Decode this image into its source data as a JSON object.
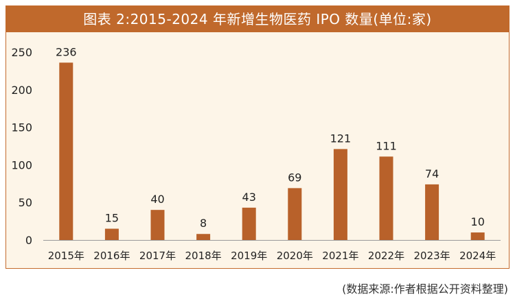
{
  "chart_data": {
    "type": "bar",
    "title": "图表 2:2015-2024 年新增生物医药 IPO 数量(单位:家)",
    "xlabel": "",
    "ylabel": "",
    "categories": [
      "2015年",
      "2016年",
      "2017年",
      "2018年",
      "2019年",
      "2020年",
      "2021年",
      "2022年",
      "2023年",
      "2024年"
    ],
    "values": [
      236,
      15,
      40,
      8,
      43,
      69,
      121,
      111,
      74,
      10
    ],
    "ylim": [
      0,
      250
    ],
    "yticks": [
      0,
      50,
      100,
      150,
      200,
      250
    ],
    "grid": false,
    "legend": "none",
    "data_labels": true
  },
  "source_note": "(数据来源:作者根据公开资料整理)",
  "colors": {
    "bar": "#b8612a",
    "title_bg": "#c0692c",
    "panel_bg": "#fdf5e8",
    "axis": "#999999"
  }
}
